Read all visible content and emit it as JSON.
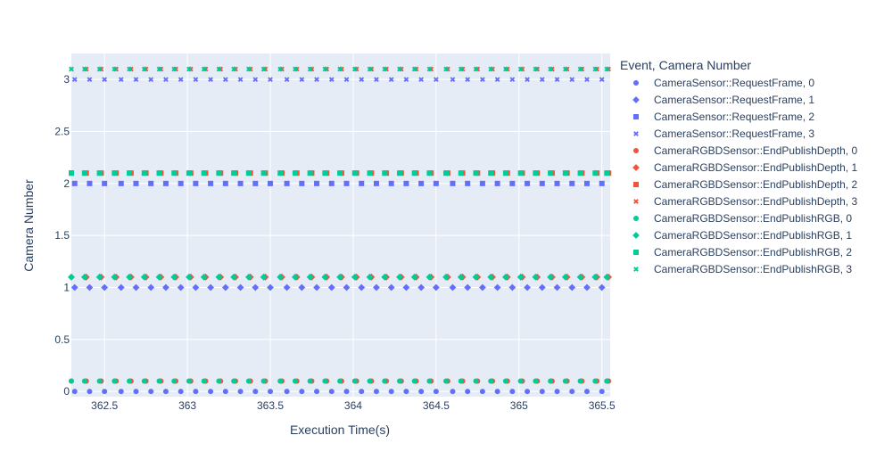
{
  "chart_data": {
    "type": "scatter",
    "xlabel": "Execution Time(s)",
    "ylabel": "Camera Number",
    "xlim": [
      362.3,
      365.55
    ],
    "ylim": [
      -0.05,
      3.25
    ],
    "x_ticks": [
      362.5,
      363,
      363.5,
      364,
      364.5,
      365,
      365.5
    ],
    "x_tick_labels": [
      "362.5",
      "363",
      "363.5",
      "364",
      "364.5",
      "365",
      "365.5"
    ],
    "y_ticks": [
      0,
      0.5,
      1,
      1.5,
      2,
      2.5,
      3
    ],
    "y_tick_labels": [
      "0",
      "0.5",
      "1",
      "1.5",
      "2",
      "2.5",
      "3"
    ],
    "grid": true,
    "legend_title": "Event, Camera Number",
    "legend_placement": "right",
    "series_x": {
      "request_frame": [
        362.32,
        362.41,
        362.5,
        362.6,
        362.69,
        362.78,
        362.87,
        362.96,
        363.05,
        363.14,
        363.23,
        363.32,
        363.41,
        363.5,
        363.6,
        363.69,
        363.78,
        363.87,
        363.96,
        364.05,
        364.14,
        364.23,
        364.32,
        364.41,
        364.5,
        364.6,
        364.69,
        364.78,
        364.87,
        364.96,
        365.05,
        365.14,
        365.23,
        365.32,
        365.41,
        365.5
      ],
      "end_publish_depth": [
        362.3,
        362.39,
        362.48,
        362.57,
        362.66,
        362.75,
        362.84,
        362.93,
        363.02,
        363.11,
        363.2,
        363.29,
        363.38,
        363.47,
        363.57,
        363.66,
        363.75,
        363.84,
        363.93,
        364.02,
        364.11,
        364.2,
        364.29,
        364.38,
        364.47,
        364.57,
        364.66,
        364.75,
        364.84,
        364.93,
        365.02,
        365.11,
        365.2,
        365.29,
        365.38,
        365.47,
        365.54
      ],
      "end_publish_rgb": [
        362.3,
        362.38,
        362.47,
        362.56,
        362.65,
        362.74,
        362.83,
        362.92,
        363.01,
        363.1,
        363.19,
        363.28,
        363.37,
        363.46,
        363.56,
        363.65,
        363.74,
        363.83,
        363.92,
        364.01,
        364.1,
        364.19,
        364.28,
        364.37,
        364.46,
        364.56,
        364.65,
        364.74,
        364.83,
        364.92,
        365.01,
        365.1,
        365.19,
        365.28,
        365.37,
        365.46,
        365.53
      ]
    },
    "series": [
      {
        "name": "CameraSensor::RequestFrame, 0",
        "y": 0,
        "x_key": "request_frame",
        "symbol": "circle",
        "color": "#636efa"
      },
      {
        "name": "CameraSensor::RequestFrame, 1",
        "y": 1,
        "x_key": "request_frame",
        "symbol": "diamond",
        "color": "#636efa"
      },
      {
        "name": "CameraSensor::RequestFrame, 2",
        "y": 2,
        "x_key": "request_frame",
        "symbol": "square",
        "color": "#636efa"
      },
      {
        "name": "CameraSensor::RequestFrame, 3",
        "y": 3,
        "x_key": "request_frame",
        "symbol": "x",
        "color": "#636efa"
      },
      {
        "name": "CameraRGBDSensor::EndPublishDepth, 0",
        "y": 0.1,
        "x_key": "end_publish_depth",
        "symbol": "circle",
        "color": "#ef553b"
      },
      {
        "name": "CameraRGBDSensor::EndPublishDepth, 1",
        "y": 1.1,
        "x_key": "end_publish_depth",
        "symbol": "diamond",
        "color": "#ef553b"
      },
      {
        "name": "CameraRGBDSensor::EndPublishDepth, 2",
        "y": 2.1,
        "x_key": "end_publish_depth",
        "symbol": "square",
        "color": "#ef553b"
      },
      {
        "name": "CameraRGBDSensor::EndPublishDepth, 3",
        "y": 3.1,
        "x_key": "end_publish_depth",
        "symbol": "x",
        "color": "#ef553b"
      },
      {
        "name": "CameraRGBDSensor::EndPublishRGB, 0",
        "y": 0.1,
        "x_key": "end_publish_rgb",
        "symbol": "circle",
        "color": "#00cc96"
      },
      {
        "name": "CameraRGBDSensor::EndPublishRGB, 1",
        "y": 1.1,
        "x_key": "end_publish_rgb",
        "symbol": "diamond",
        "color": "#00cc96"
      },
      {
        "name": "CameraRGBDSensor::EndPublishRGB, 2",
        "y": 2.1,
        "x_key": "end_publish_rgb",
        "symbol": "square",
        "color": "#00cc96"
      },
      {
        "name": "CameraRGBDSensor::EndPublishRGB, 3",
        "y": 3.1,
        "x_key": "end_publish_rgb",
        "symbol": "x",
        "color": "#00cc96"
      }
    ],
    "colors": {
      "plot_bg": "#e5ecf6",
      "grid": "#ffffff",
      "text": "#2a3f5f"
    }
  }
}
